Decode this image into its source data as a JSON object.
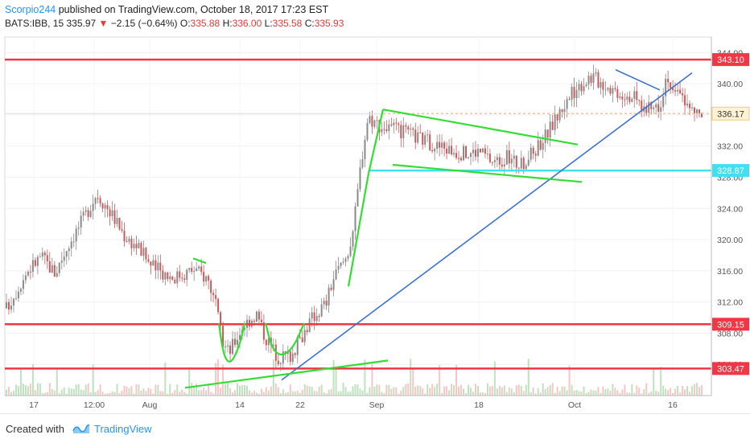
{
  "header": {
    "author": "Scorpio244",
    "published_text": " published on TradingView.com, October 18, 2017 17:23 EST",
    "symbol_interval": "BATS:IBB, 15",
    "last": "335.97",
    "change_arrow": "▼",
    "change": "−2.15 (−0.64%)",
    "o_label": "O:",
    "o": "335.88",
    "h_label": "H:",
    "h": "336.00",
    "l_label": "L:",
    "l": "335.58",
    "c_label": "C:",
    "c": "335.93"
  },
  "footer": {
    "created_with": "Created with",
    "brand": "TradingView"
  },
  "colors": {
    "support_resistance": "#f23645",
    "trendline": "#3b73d1",
    "pattern": "#33dd33",
    "cyan_level": "#40e0f0",
    "dotted_level": "#f5c97a",
    "candle_up": "#8a8a8a",
    "candle_down": "#c75a5a"
  },
  "chart_data": {
    "type": "candlestick",
    "symbol": "BATS:IBB",
    "interval": "15",
    "ylim": [
      300,
      346
    ],
    "y_ticks": [
      "344.00",
      "340.00",
      "336.00",
      "332.00",
      "328.00",
      "324.00",
      "320.00",
      "316.00",
      "312.00",
      "308.00",
      "304.00"
    ],
    "x_ticks": [
      "17",
      "12:00",
      "Aug",
      "14",
      "22",
      "Sep",
      "18",
      "Oct",
      "16"
    ],
    "price_labels": [
      {
        "text": "343.10",
        "value": 343.1,
        "style": "red"
      },
      {
        "text": "336.17",
        "value": 336.17,
        "style": "dotted"
      },
      {
        "text": "328.87",
        "value": 328.87,
        "style": "cyan"
      },
      {
        "text": "309.15",
        "value": 309.15,
        "style": "red"
      },
      {
        "text": "303.47",
        "value": 303.47,
        "style": "red"
      }
    ],
    "horizontal_levels": [
      {
        "value": 343.1,
        "style": "red"
      },
      {
        "value": 309.15,
        "style": "red"
      },
      {
        "value": 303.47,
        "style": "red"
      },
      {
        "value": 328.87,
        "style": "cyan"
      },
      {
        "value": 336.17,
        "style": "dotted"
      }
    ],
    "price_path": [
      [
        0.0,
        311.2
      ],
      [
        0.03,
        316.0
      ],
      [
        0.05,
        317.9
      ],
      [
        0.07,
        315.7
      ],
      [
        0.09,
        319.6
      ],
      [
        0.11,
        322.6
      ],
      [
        0.13,
        326.0
      ],
      [
        0.15,
        323.5
      ],
      [
        0.17,
        320.5
      ],
      [
        0.19,
        319.0
      ],
      [
        0.21,
        316.5
      ],
      [
        0.24,
        315.2
      ],
      [
        0.27,
        316.2
      ],
      [
        0.29,
        315.0
      ],
      [
        0.3,
        312.0
      ],
      [
        0.31,
        307.0
      ],
      [
        0.32,
        305.5
      ],
      [
        0.34,
        309.0
      ],
      [
        0.36,
        310.5
      ],
      [
        0.37,
        308.0
      ],
      [
        0.39,
        305.0
      ],
      [
        0.41,
        305.2
      ],
      [
        0.43,
        308.5
      ],
      [
        0.44,
        310.0
      ],
      [
        0.46,
        312.0
      ],
      [
        0.47,
        315.0
      ],
      [
        0.49,
        318.0
      ],
      [
        0.5,
        322.0
      ],
      [
        0.51,
        330.0
      ],
      [
        0.52,
        335.8
      ],
      [
        0.54,
        334.5
      ],
      [
        0.56,
        334.0
      ],
      [
        0.58,
        333.5
      ],
      [
        0.6,
        332.8
      ],
      [
        0.62,
        332.0
      ],
      [
        0.64,
        331.5
      ],
      [
        0.66,
        331.0
      ],
      [
        0.68,
        331.4
      ],
      [
        0.7,
        330.0
      ],
      [
        0.72,
        330.5
      ],
      [
        0.74,
        329.5
      ],
      [
        0.76,
        331.5
      ],
      [
        0.78,
        334.0
      ],
      [
        0.8,
        337.0
      ],
      [
        0.82,
        339.5
      ],
      [
        0.84,
        341.0
      ],
      [
        0.86,
        340.0
      ],
      [
        0.88,
        339.0
      ],
      [
        0.9,
        338.5
      ],
      [
        0.92,
        336.5
      ],
      [
        0.94,
        337.5
      ],
      [
        0.95,
        341.5
      ],
      [
        0.96,
        338.0
      ],
      [
        0.97,
        339.5
      ],
      [
        0.98,
        336.8
      ],
      [
        1.0,
        335.9
      ]
    ],
    "annotations": [
      {
        "kind": "trendline",
        "color": "blue",
        "points": [
          [
            350,
            302.0
          ],
          [
            860,
            341.4
          ]
        ]
      },
      {
        "kind": "trendline",
        "color": "blue",
        "points": [
          [
            765,
            341.8
          ],
          [
            820,
            339.2
          ]
        ]
      },
      {
        "kind": "trendline",
        "color": "green",
        "points": [
          [
            230,
            301.0
          ],
          [
            482,
            304.5
          ]
        ]
      },
      {
        "kind": "trendline",
        "color": "green",
        "points": [
          [
            476,
            336.7
          ],
          [
            718,
            332.2
          ]
        ]
      },
      {
        "kind": "trendline",
        "color": "green",
        "points": [
          [
            488,
            329.6
          ],
          [
            723,
            327.4
          ]
        ]
      },
      {
        "kind": "trendline",
        "color": "green",
        "points": [
          [
            433,
            314.0
          ],
          [
            458,
            328.5
          ]
        ]
      },
      {
        "kind": "trendline",
        "color": "green",
        "points": [
          [
            458,
            328.5
          ],
          [
            476,
            336.7
          ]
        ]
      },
      {
        "kind": "curve",
        "color": "green",
        "points": [
          [
            272,
            309.2
          ],
          [
            278,
            305.0
          ],
          [
            287,
            304.0
          ],
          [
            298,
            306.5
          ],
          [
            304,
            309.3
          ]
        ]
      },
      {
        "kind": "curve",
        "color": "green",
        "points": [
          [
            330,
            309.3
          ],
          [
            338,
            306.0
          ],
          [
            350,
            305.0
          ],
          [
            365,
            306.2
          ],
          [
            378,
            309.3
          ]
        ]
      },
      {
        "kind": "trendline",
        "color": "green",
        "points": [
          [
            240,
            317.6
          ],
          [
            256,
            317.0
          ]
        ]
      }
    ]
  }
}
